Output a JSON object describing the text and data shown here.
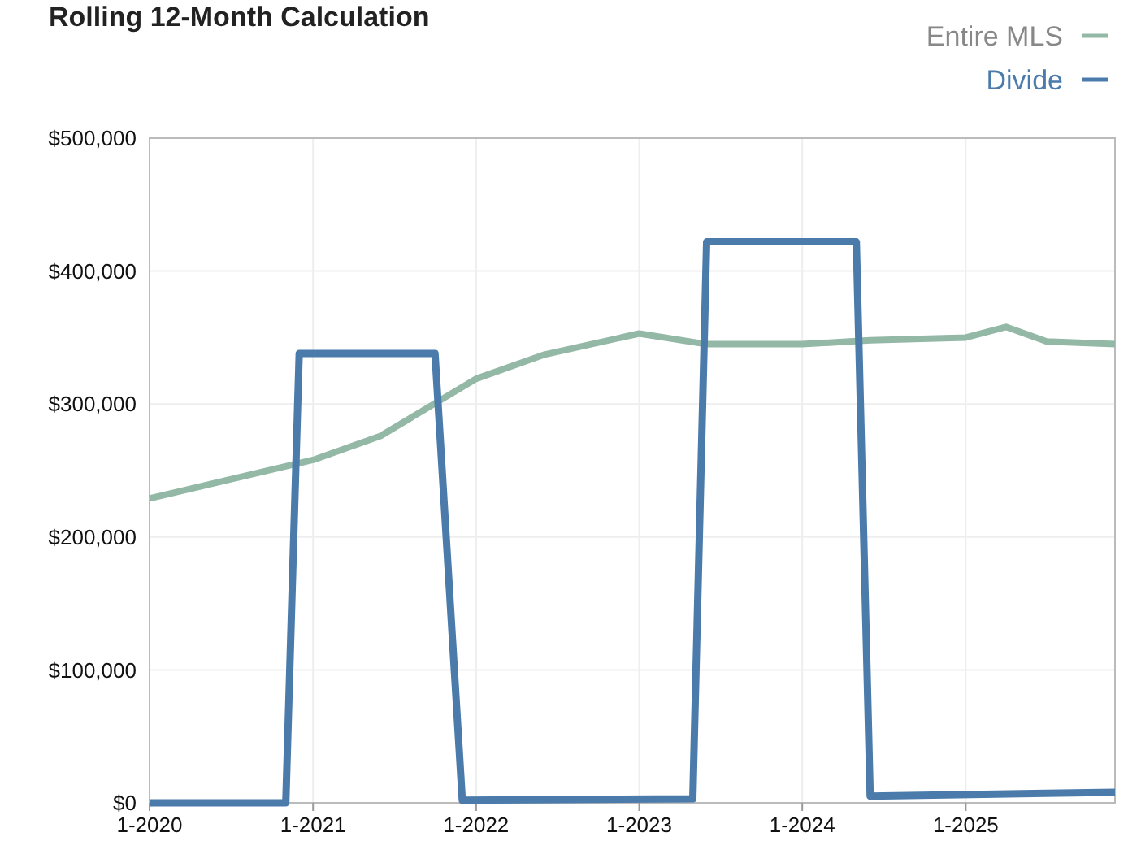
{
  "chart_data": {
    "type": "line",
    "title": "Rolling 12-Month Calculation",
    "xlim": [
      "2020-01",
      "2025-12"
    ],
    "xticks": [
      {
        "value": "2020-01",
        "label": "1-2020"
      },
      {
        "value": "2021-01",
        "label": "1-2021"
      },
      {
        "value": "2022-01",
        "label": "1-2022"
      },
      {
        "value": "2023-01",
        "label": "1-2023"
      },
      {
        "value": "2024-01",
        "label": "1-2024"
      },
      {
        "value": "2025-01",
        "label": "1-2025"
      }
    ],
    "ylim": [
      0,
      500000
    ],
    "yticks": [
      {
        "value": 0,
        "label": "$0"
      },
      {
        "value": 100000,
        "label": "$100,000"
      },
      {
        "value": 200000,
        "label": "$200,000"
      },
      {
        "value": 300000,
        "label": "$300,000"
      },
      {
        "value": 400000,
        "label": "$400,000"
      },
      {
        "value": 500000,
        "label": "$500,000"
      }
    ],
    "grid": true,
    "legend": "top right",
    "marker": "none",
    "line_style": "solid",
    "series": [
      {
        "name": "Entire MLS",
        "color": "#93b8a6",
        "x": [
          "2020-01",
          "2020-06",
          "2021-01",
          "2021-06",
          "2022-01",
          "2022-06",
          "2023-01",
          "2023-06",
          "2024-01",
          "2024-06",
          "2025-01",
          "2025-04",
          "2025-07",
          "2025-12"
        ],
        "values": [
          229000,
          241000,
          258000,
          276000,
          319000,
          337000,
          353000,
          345000,
          345000,
          348000,
          350000,
          358000,
          347000,
          345000
        ]
      },
      {
        "name": "Divide",
        "color": "#4a7bab",
        "x": [
          "2020-01",
          "2020-11",
          "2020-12",
          "2021-10",
          "2021-12",
          "2023-05",
          "2023-06",
          "2024-05",
          "2024-06",
          "2025-12"
        ],
        "values": [
          0,
          0,
          338000,
          338000,
          2000,
          3000,
          422000,
          422000,
          5000,
          8000
        ]
      }
    ]
  }
}
